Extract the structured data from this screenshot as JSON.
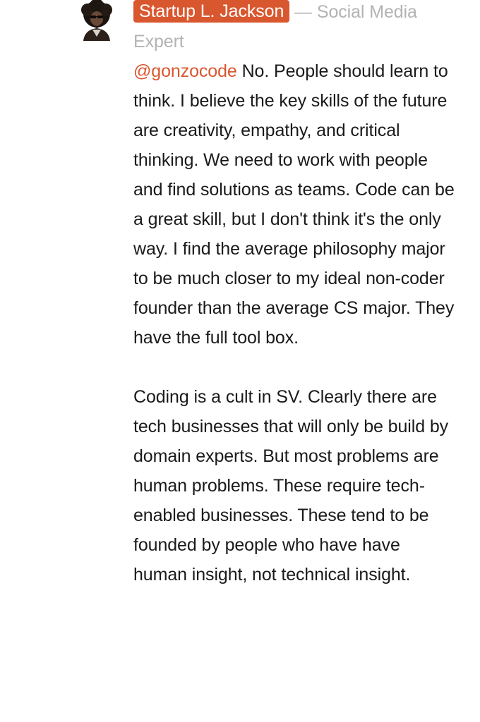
{
  "comment": {
    "author": {
      "name": "Startup L. Jackson",
      "separator": "—",
      "title": "Social Media Expert",
      "avatar": "afro-man-avatar"
    },
    "mention": "@gonzocode",
    "paragraphs": [
      "No. People should learn to think. I believe the key skills of the future are creativity, empathy, and critical thinking. We need to work with people and find solutions as teams. Code can be a great skill, but I don't think it's the only way. I find the average philosophy major to be much closer to my ideal non-coder founder than the average CS major. They have the full tool box.",
      "Coding is a cult in SV. Clearly there are tech businesses that will only be build by domain experts. But most problems are human problems. These require tech-enabled businesses. These tend to be founded by people who have have human insight, not technical insight."
    ]
  },
  "colors": {
    "accent": "#d9572f",
    "muted": "#b3b3b3",
    "text": "#1a1a1a"
  }
}
